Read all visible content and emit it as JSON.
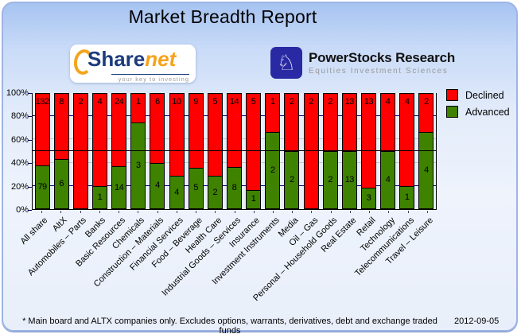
{
  "title": "Market Breadth Report",
  "logos": {
    "sharenet": {
      "word_share": "Share",
      "word_net": "net",
      "tagline": "your key to investing",
      "navy": "#1C3C7E",
      "orange": "#F5A31C"
    },
    "powerstocks": {
      "name": "PowerStocks  Research",
      "tagline": "Equities Investment Sciences",
      "icon": "knight-chess-icon",
      "square_color": "#2929A3"
    }
  },
  "footer": {
    "note": "* Main board and ALTX companies only. Excludes options, warrants, derivatives, debt and exchange traded funds",
    "date": "2012-09-05"
  },
  "chart_data": {
    "type": "bar",
    "stacked": true,
    "percent_normalized": true,
    "categories": [
      "All share",
      "AltX",
      "Automobiles – Parts",
      "Banks",
      "Basic Resources",
      "Chemicals",
      "Construction – Materials",
      "Financial Services",
      "Food – Beverage",
      "Health Care",
      "Industrial Goods – Services",
      "Insurance",
      "Investment Instruments",
      "Media",
      "Oil – Gas",
      "Personal – Household Goods",
      "Real Estate",
      "Retail",
      "Technology",
      "Telecommunications",
      "Travel – Leisure"
    ],
    "series": [
      {
        "name": "Declined",
        "color": "#FF0000",
        "values": [
          132,
          8,
          2,
          4,
          24,
          1,
          6,
          10,
          9,
          5,
          14,
          5,
          1,
          2,
          2,
          2,
          13,
          13,
          4,
          4,
          2
        ]
      },
      {
        "name": "Advanced",
        "color": "#3E8200",
        "values": [
          79,
          6,
          0,
          1,
          14,
          3,
          4,
          4,
          5,
          2,
          8,
          1,
          2,
          2,
          0,
          2,
          13,
          3,
          4,
          1,
          4
        ]
      }
    ],
    "ylabel": "",
    "xlabel": "",
    "ylim": [
      0,
      100
    ],
    "y_ticks": [
      {
        "label": "100%",
        "pct": 100
      },
      {
        "label": "80%",
        "pct": 80
      },
      {
        "label": "60%",
        "pct": 60
      },
      {
        "label": "40%",
        "pct": 40
      },
      {
        "label": "20%",
        "pct": 20
      },
      {
        "label": "0%",
        "pct": 0
      }
    ],
    "gridlines": [
      {
        "pct": 80,
        "color": "#000080"
      },
      {
        "pct": 60,
        "color": "#C6C6C6"
      },
      {
        "pct": 40,
        "color": "#C6C6C6"
      },
      {
        "pct": 20,
        "color": "#000080"
      }
    ],
    "reference_line": {
      "pct": 50,
      "color": "#000000"
    },
    "plot_background": "#E8EFF8",
    "axis_color": "#000000",
    "tick_color": "#000080",
    "grid": true,
    "legend_position": "top-right"
  }
}
